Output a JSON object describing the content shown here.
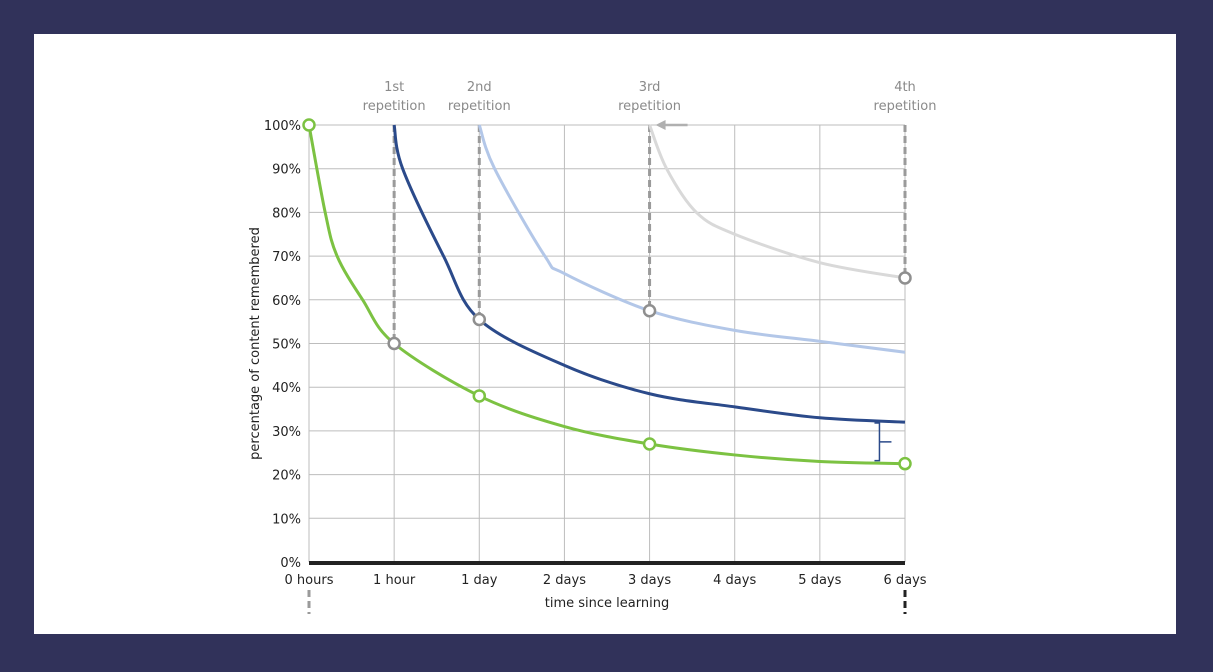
{
  "chart_data": {
    "type": "line",
    "xlabel": "time since learning",
    "ylabel": "percentage of content remembered",
    "categories": [
      "0 hours",
      "1 hour",
      "1 day",
      "2 days",
      "3 days",
      "4 days",
      "5 days",
      "6 days"
    ],
    "y_ticks": [
      "0%",
      "10%",
      "20%",
      "30%",
      "40%",
      "50%",
      "60%",
      "70%",
      "80%",
      "90%",
      "100%"
    ],
    "ylim": [
      0,
      100
    ],
    "grid": true,
    "repetition_labels": [
      {
        "line1": "1st",
        "line2": "repetition",
        "at": "1 hour"
      },
      {
        "line1": "2nd",
        "line2": "repetition",
        "at": "1 day"
      },
      {
        "line1": "3rd",
        "line2": "repetition",
        "at": "3 days"
      },
      {
        "line1": "4th",
        "line2": "repetition",
        "at": "6 days"
      }
    ],
    "series": [
      {
        "color": "#7cc242",
        "x": [
          0,
          0.19,
          0.33,
          0.63,
          1,
          2,
          3,
          4,
          5,
          6,
          7
        ],
        "y": [
          100,
          80,
          70,
          60,
          50,
          38,
          31,
          27,
          24.5,
          23,
          22.5
        ],
        "markers": [
          [
            0,
            100
          ],
          [
            2,
            38
          ],
          [
            4,
            27
          ],
          [
            7,
            22.5
          ]
        ]
      },
      {
        "color": "#2b4a8a",
        "x": [
          1,
          1.1,
          1.58,
          2,
          3,
          4,
          5,
          6,
          7
        ],
        "y": [
          100,
          90,
          70,
          55.5,
          45,
          38.5,
          35.5,
          33,
          32
        ]
      },
      {
        "color": "#b3c7e8",
        "x": [
          2,
          2.18,
          2.77,
          3,
          4,
          5,
          6,
          7
        ],
        "y": [
          100,
          90,
          70,
          66,
          57.5,
          53,
          50.5,
          48
        ]
      },
      {
        "color": "#d9d9d9",
        "x": [
          4,
          4.2,
          4.55,
          5,
          6,
          7
        ],
        "y": [
          100,
          90,
          80,
          75,
          68.5,
          65
        ]
      }
    ],
    "repetition_markers": [
      [
        1,
        50
      ],
      [
        2,
        55.5
      ],
      [
        4,
        57.5
      ],
      [
        7,
        65
      ]
    ],
    "colors": {
      "grid": "#bdbdbd",
      "dashed": "#9a9a9a",
      "axis": "#222222",
      "label": "#8a8a8a",
      "background": "#31325a"
    }
  }
}
